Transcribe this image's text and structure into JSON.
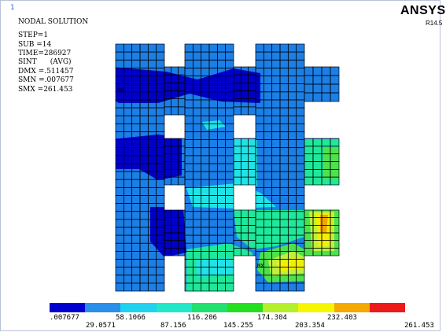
{
  "window_number": "1",
  "brand": "ANSYS",
  "release": "R14.5",
  "info": {
    "title": "NODAL SOLUTION",
    "lines": [
      "STEP=1",
      "SUB =14",
      "TIME=286927",
      "SINT      (AVG)",
      "DMX =.511457",
      "SMN =.007677",
      "SMX =261.453"
    ]
  },
  "markers": {
    "mn": "MN",
    "mx": "MX"
  },
  "colors": {
    "mesh_line": "#000000",
    "contour": [
      "#0000c8",
      "#1c7fe6",
      "#2aa6e6",
      "#19c9ea",
      "#21e3e6",
      "#1fe89a",
      "#4de24d",
      "#c0f03c",
      "#f0f000",
      "#f0a800",
      "#e84800",
      "#d60000"
    ],
    "legend": [
      "#0000d0",
      "#2a8fe8",
      "#1fd2f0",
      "#20e8c8",
      "#20e06e",
      "#22e020",
      "#b4f02a",
      "#f6f600",
      "#f4a800",
      "#ee1a1a"
    ]
  },
  "legend": {
    "top_labels": [
      ".007677",
      "58.1066",
      "116.206",
      "174.304",
      "232.403"
    ],
    "bottom_labels": [
      "29.0571",
      "87.156",
      "145.255",
      "203.354",
      "261.453"
    ]
  }
}
